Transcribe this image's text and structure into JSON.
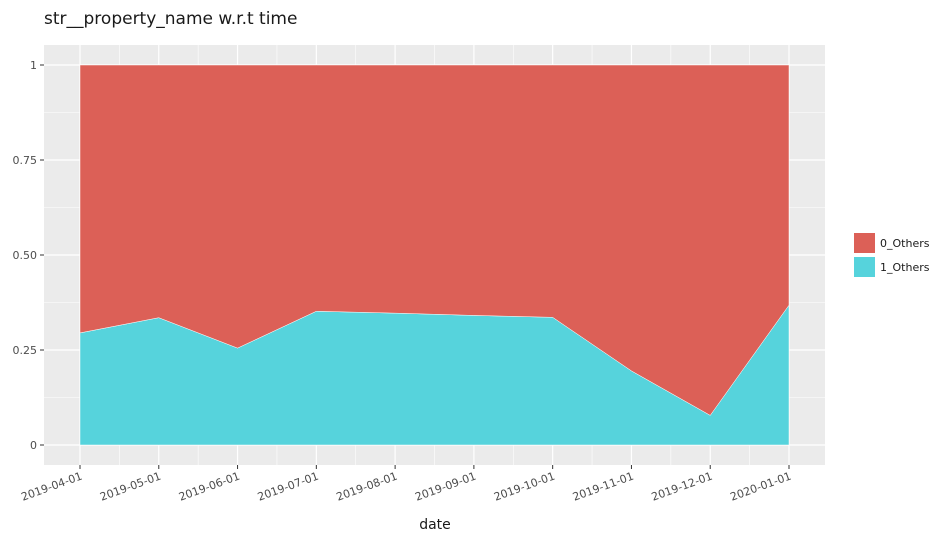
{
  "chart_data": {
    "type": "area",
    "stacked": true,
    "normalized": true,
    "title": "str__property_name w.r.t time",
    "xlabel": "date",
    "ylabel": "",
    "x": [
      "2019-04-01",
      "2019-05-01",
      "2019-06-01",
      "2019-07-01",
      "2019-08-01",
      "2019-09-01",
      "2019-10-01",
      "2019-11-01",
      "2019-12-01",
      "2020-01-01"
    ],
    "ylim": [
      0,
      1
    ],
    "yticks": [
      0,
      0.25,
      0.5,
      0.75,
      1
    ],
    "ytick_labels": [
      "0",
      "0.25",
      "0.50",
      "0.75",
      "1"
    ],
    "series": [
      {
        "name": "1_Others",
        "color": "#56d3dc",
        "values": [
          0.295,
          0.335,
          0.255,
          0.352,
          0.347,
          0.341,
          0.336,
          0.195,
          0.078,
          0.368
        ]
      },
      {
        "name": "0_Others",
        "color": "#dc6057",
        "values": [
          0.705,
          0.665,
          0.745,
          0.648,
          0.653,
          0.659,
          0.664,
          0.805,
          0.922,
          0.632
        ]
      }
    ],
    "legend_order": [
      "0_Others",
      "1_Others"
    ],
    "legend_position": "right",
    "grid": true,
    "panel_background": "#ebebeb"
  }
}
